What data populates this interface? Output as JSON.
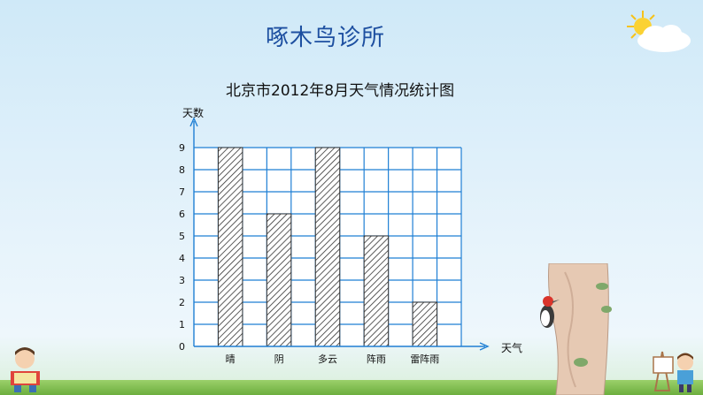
{
  "page": {
    "title": "啄木鸟诊所"
  },
  "chart_data": {
    "type": "bar",
    "title": "北京市2012年8月天气情况统计图",
    "ylabel": "天数",
    "xlabel": "天气",
    "categories": [
      "晴",
      "阴",
      "多云",
      "阵雨",
      "雷阵雨"
    ],
    "values": [
      9,
      6,
      9,
      5,
      2
    ],
    "ylim": [
      0,
      9
    ],
    "yticks": [
      "0",
      "1",
      "2",
      "3",
      "4",
      "5",
      "6",
      "7",
      "8",
      "9"
    ],
    "grid": true,
    "bar_pattern": "diagonal-hatch",
    "colors": {
      "grid": "#1f7fd4",
      "bar_stroke": "#333333",
      "axis": "#1f7fd4"
    }
  }
}
